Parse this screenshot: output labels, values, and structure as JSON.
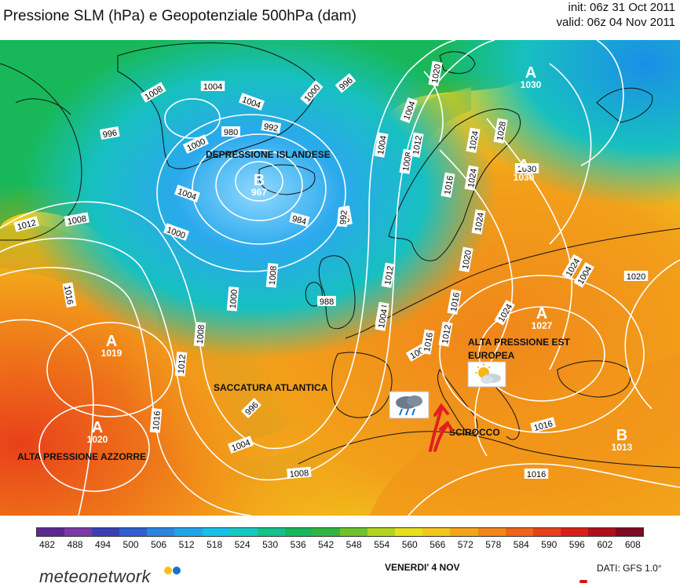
{
  "header": {
    "title": "Pressione SLM (hPa) e Geopotenziale 500hPa (dam)",
    "init": "init: 06z 31 Oct 2011",
    "valid": "valid: 06z 04 Nov 2011"
  },
  "map": {
    "pressure_centers": [
      {
        "letter": "A",
        "value": "1030"
      },
      {
        "letter": "A",
        "value": "1030"
      },
      {
        "letter": "B",
        "value": "967"
      },
      {
        "letter": "A",
        "value": "1019"
      },
      {
        "letter": "A",
        "value": "1020"
      },
      {
        "letter": "A",
        "value": "1027"
      },
      {
        "letter": "B",
        "value": "1013"
      }
    ],
    "annotations": {
      "islandic": "DEPRESSIONE ISLANDESE",
      "atlantic": "SACCATURA ATLANTICA",
      "azores": "ALTA PRESSIONE AZZORRE",
      "east_line1": "ALTA PRESSIONE EST",
      "east_line2": "EUROPEA",
      "scirocco": "SCIROCCO"
    },
    "isobar_labels": [
      "1008",
      "1004",
      "1004",
      "996",
      "1000",
      "1000",
      "992",
      "980",
      "996",
      "984",
      "992",
      "1004",
      "1020",
      "1008",
      "1004",
      "1012",
      "1016",
      "1024",
      "1028",
      "1030",
      "1012",
      "1008",
      "1016",
      "1004",
      "1000",
      "1008",
      "1012",
      "996",
      "1004",
      "1008",
      "1016",
      "1020",
      "1024",
      "1016",
      "1016",
      "1024",
      "1020",
      "1008",
      "988",
      "992",
      "1000",
      "1008",
      "1012",
      "1016",
      "1012",
      "1008",
      "1004",
      "1004",
      "1016",
      "1024",
      "1024"
    ],
    "colors": {
      "deep_blue": "#1a8fe6",
      "green": "#1fb84a",
      "yellow": "#f2e21a",
      "orange": "#f2941a",
      "red": "#e8401a",
      "arrow": "#e02020"
    },
    "icons": [
      "rain-cloud-icon",
      "sun-cloud-icon"
    ]
  },
  "legend": {
    "ticks": [
      "482",
      "488",
      "494",
      "500",
      "506",
      "512",
      "518",
      "524",
      "530",
      "536",
      "542",
      "548",
      "554",
      "560",
      "566",
      "572",
      "578",
      "584",
      "590",
      "596",
      "602",
      "608"
    ],
    "colors": [
      "#5b2a8f",
      "#7a3aa8",
      "#3b3fb5",
      "#2f5fd0",
      "#2a86e0",
      "#1fa6ea",
      "#17c0ea",
      "#15c9c2",
      "#14c28a",
      "#18b85a",
      "#2fb63e",
      "#6ec22c",
      "#b3d41f",
      "#e8e01a",
      "#f4c61a",
      "#f4a51a",
      "#f2861a",
      "#ee641a",
      "#e8401a",
      "#d8201a",
      "#b0101a",
      "#7f0a22"
    ]
  },
  "footer": {
    "brand": "meteonetwork",
    "day": "VENERDI' 4 NOV",
    "source": "DATI:  GFS  1.0°"
  }
}
